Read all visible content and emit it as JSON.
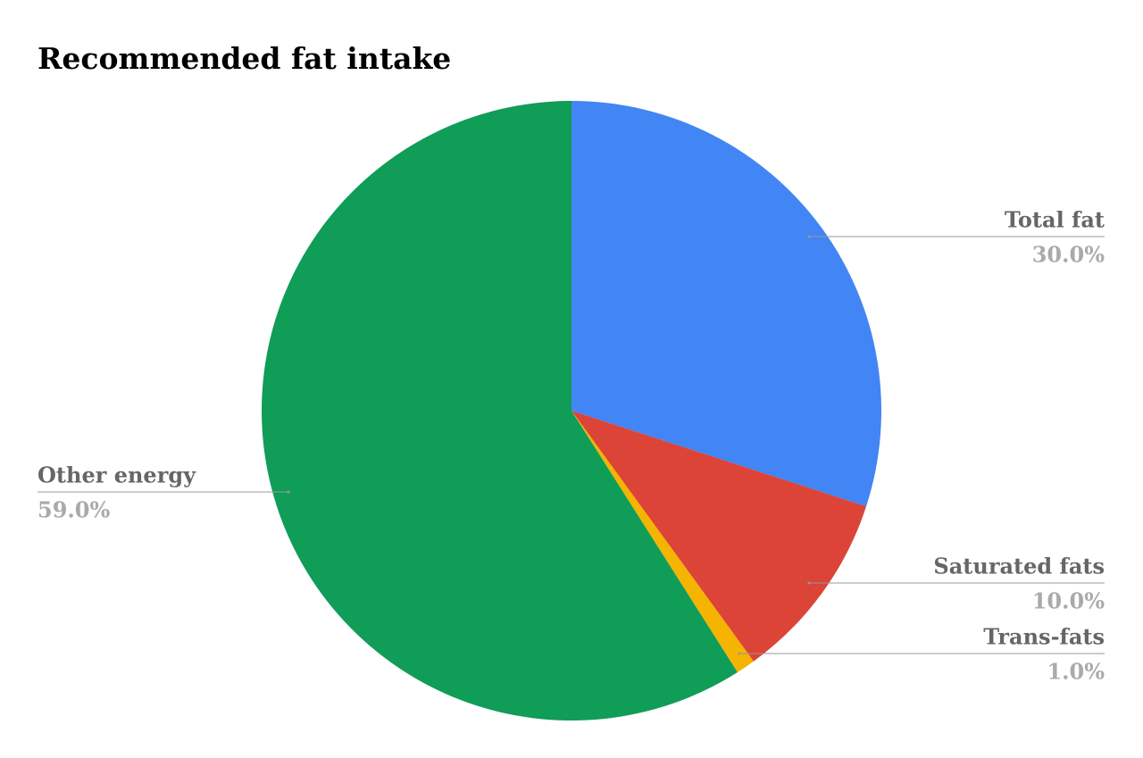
{
  "chart_data": {
    "type": "pie",
    "title": "Recommended fat intake",
    "categories": [
      "Total fat",
      "Saturated fats",
      "Trans-fats",
      "Other energy"
    ],
    "values": [
      30,
      10,
      1,
      59
    ],
    "value_labels": [
      "30.0%",
      "10.0%",
      "1.0%",
      "59.0%"
    ],
    "colors": [
      "#4285f4",
      "#db4437",
      "#f4b400",
      "#0f9d58"
    ]
  }
}
